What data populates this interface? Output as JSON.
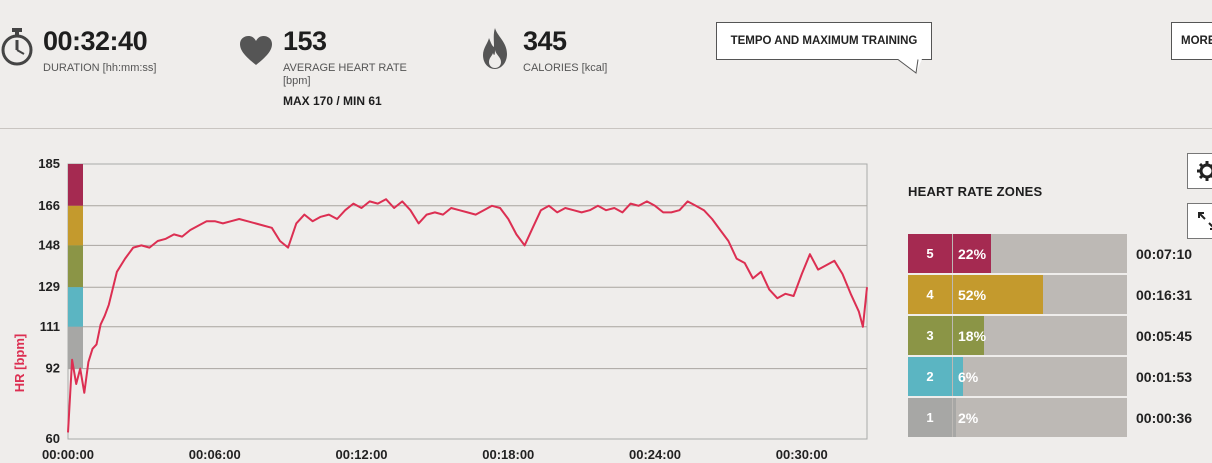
{
  "summary": {
    "duration": {
      "value": "00:32:40",
      "label": "DURATION [hh:mm:ss]",
      "icon": "stopwatch-icon"
    },
    "heart_rate": {
      "value": "153",
      "label_line1": "AVERAGE HEART RATE",
      "label_line2": "[bpm]",
      "max_min": "MAX 170  /  MIN 61",
      "icon": "heart-icon"
    },
    "calories": {
      "value": "345",
      "label": "CALORIES [kcal]",
      "icon": "flame-icon"
    }
  },
  "training_callout": "TEMPO AND MAXIMUM TRAINING",
  "more_button": "MORE",
  "chart_data": {
    "type": "line",
    "ylabel": "HR [bpm]",
    "y_ticks": [
      60,
      92,
      111,
      129,
      148,
      166,
      185
    ],
    "ylim": [
      60,
      185
    ],
    "x_ticks": [
      "00:00:00",
      "00:06:00",
      "00:12:00",
      "00:18:00",
      "00:24:00",
      "00:30:00"
    ],
    "xlim_seconds": [
      0,
      1960
    ],
    "zone_band_colors": [
      "#a52a51",
      "#c49a2d",
      "#8b9546",
      "#5bb5c2",
      "#a7a7a5"
    ],
    "line_color": "#dc2f52",
    "series": [
      {
        "x": [
          0,
          10,
          20,
          30,
          40,
          50,
          60,
          70,
          80,
          90,
          100,
          120,
          140,
          160,
          180,
          200,
          220,
          240,
          260,
          280,
          300,
          320,
          340,
          360,
          380,
          400,
          420,
          440,
          460,
          480,
          500,
          520,
          540,
          560,
          580,
          600,
          620,
          640,
          660,
          680,
          700,
          720,
          740,
          760,
          780,
          800,
          820,
          840,
          860,
          880,
          900,
          920,
          940,
          960,
          980,
          1000,
          1020,
          1040,
          1060,
          1080,
          1100,
          1120,
          1140,
          1160,
          1180,
          1200,
          1220,
          1240,
          1260,
          1280,
          1300,
          1320,
          1340,
          1360,
          1380,
          1400,
          1420,
          1440,
          1460,
          1480,
          1500,
          1520,
          1540,
          1560,
          1580,
          1600,
          1620,
          1640,
          1660,
          1680,
          1700,
          1720,
          1740,
          1760,
          1780,
          1800,
          1820,
          1840,
          1860,
          1880,
          1900,
          1920,
          1940,
          1950,
          1960
        ],
        "y": [
          63,
          96,
          85,
          92,
          81,
          95,
          101,
          103,
          112,
          116,
          121,
          136,
          142,
          147,
          148,
          147,
          150,
          151,
          153,
          152,
          155,
          157,
          159,
          159,
          158,
          159,
          160,
          159,
          158,
          157,
          156,
          150,
          147,
          158,
          162,
          159,
          161,
          162,
          160,
          164,
          167,
          165,
          168,
          167,
          169,
          165,
          168,
          164,
          158,
          162,
          163,
          162,
          165,
          164,
          163,
          162,
          164,
          166,
          165,
          160,
          153,
          148,
          156,
          164,
          166,
          163,
          165,
          164,
          163,
          164,
          166,
          164,
          165,
          163,
          167,
          166,
          168,
          166,
          163,
          163,
          164,
          168,
          166,
          164,
          160,
          155,
          150,
          142,
          140,
          133,
          136,
          128,
          124,
          126,
          125,
          135,
          144,
          137,
          139,
          141,
          135,
          126,
          118,
          111,
          129
        ]
      }
    ]
  },
  "zones_title": "HEART RATE ZONES",
  "zones": [
    {
      "num": "5",
      "pct": "22%",
      "fraction": 0.22,
      "time": "00:07:10",
      "color": "#a52a51"
    },
    {
      "num": "4",
      "pct": "52%",
      "fraction": 0.52,
      "time": "00:16:31",
      "color": "#c49a2d"
    },
    {
      "num": "3",
      "pct": "18%",
      "fraction": 0.18,
      "time": "00:05:45",
      "color": "#8b9546"
    },
    {
      "num": "2",
      "pct": "6%",
      "fraction": 0.06,
      "time": "00:01:53",
      "color": "#5bb5c2"
    },
    {
      "num": "1",
      "pct": "2%",
      "fraction": 0.02,
      "time": "00:00:36",
      "color": "#a7a7a5"
    }
  ],
  "side_buttons": [
    "gear-icon",
    "expand-icon"
  ]
}
